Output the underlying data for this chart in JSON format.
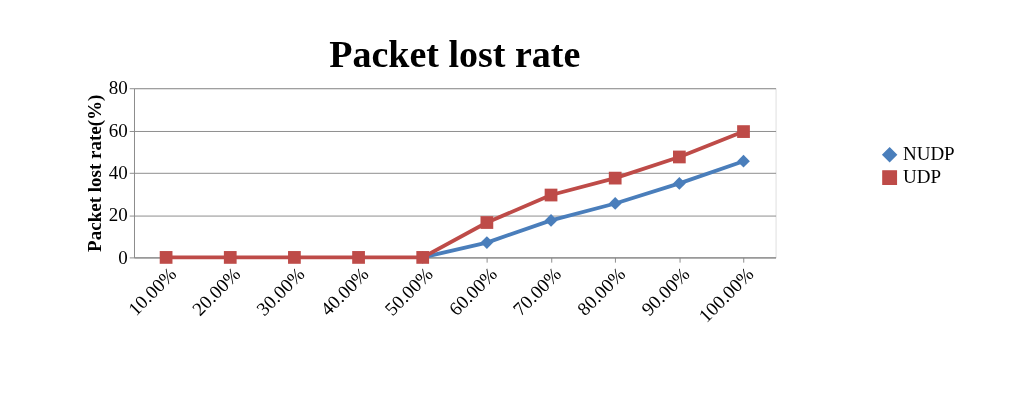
{
  "chart_data": {
    "type": "line",
    "title": "Packet lost rate",
    "ylabel": "Packet lost rate(%)",
    "categories": [
      "10.00%",
      "20.00%",
      "30.00%",
      "40.00%",
      "50.00%",
      "60.00%",
      "70.00%",
      "80.00%",
      "90.00%",
      "100.00%"
    ],
    "series": [
      {
        "name": "NUDP",
        "color": "#4a7ebb",
        "marker": "diamond",
        "values": [
          null,
          null,
          null,
          null,
          0,
          7,
          17.5,
          25.5,
          35,
          45.5
        ]
      },
      {
        "name": "UDP",
        "color": "#be4b48",
        "marker": "square",
        "values": [
          0,
          0,
          0,
          0,
          0,
          16.5,
          29.5,
          37.5,
          47.5,
          59.5
        ]
      }
    ],
    "ylim": [
      0,
      80
    ],
    "yticks": [
      0,
      20,
      40,
      60,
      80
    ],
    "grid": "y",
    "legend": "right",
    "line_style": "solid"
  }
}
